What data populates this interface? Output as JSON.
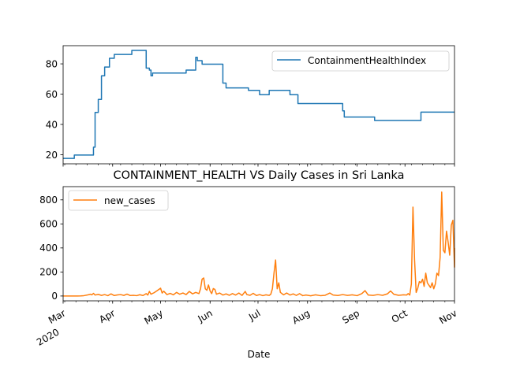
{
  "chart_data": [
    {
      "type": "line",
      "title": "",
      "xlabel": "",
      "ylabel": "",
      "xlim": [
        "2020-03-01",
        "2020-11-01"
      ],
      "ylim": [
        14,
        92
      ],
      "yticks": [
        20,
        40,
        60,
        80
      ],
      "legend": {
        "position": "top-right",
        "entries": [
          "ContainmentHealthIndex"
        ]
      },
      "series": [
        {
          "name": "ContainmentHealthIndex",
          "color": "#1f77b4",
          "step": true,
          "points": [
            [
              "2020-03-01",
              17.6
            ],
            [
              "2020-03-08",
              19.8
            ],
            [
              "2020-03-20",
              25
            ],
            [
              "2020-03-21",
              47.9
            ],
            [
              "2020-03-22",
              47.9
            ],
            [
              "2020-03-23",
              56.5
            ],
            [
              "2020-03-24",
              56.5
            ],
            [
              "2020-03-25",
              72.1
            ],
            [
              "2020-03-27",
              77.9
            ],
            [
              "2020-03-30",
              83.7
            ],
            [
              "2020-04-01",
              83.7
            ],
            [
              "2020-04-02",
              86.2
            ],
            [
              "2020-04-13",
              88.9
            ],
            [
              "2020-04-22",
              77.2
            ],
            [
              "2020-04-24",
              75.9
            ],
            [
              "2020-04-25",
              72.1
            ],
            [
              "2020-04-26",
              73.9
            ],
            [
              "2020-05-17",
              75.9
            ],
            [
              "2020-05-23",
              84.3
            ],
            [
              "2020-05-24",
              82.1
            ],
            [
              "2020-05-27",
              79.8
            ],
            [
              "2020-06-09",
              67.3
            ],
            [
              "2020-06-11",
              64.1
            ],
            [
              "2020-06-25",
              62.5
            ],
            [
              "2020-07-02",
              59.6
            ],
            [
              "2020-07-08",
              62.5
            ],
            [
              "2020-07-21",
              59.6
            ],
            [
              "2020-07-26",
              53.8
            ],
            [
              "2020-08-23",
              49.0
            ],
            [
              "2020-08-24",
              44.9
            ],
            [
              "2020-09-12",
              42.6
            ],
            [
              "2020-10-11",
              48.1
            ],
            [
              "2020-11-01",
              48.1
            ]
          ]
        }
      ]
    },
    {
      "type": "line",
      "title": "CONTAINMENT_HEALTH VS Daily Cases in Sri Lanka",
      "xlabel": "Date",
      "ylabel": "",
      "xlim": [
        "2020-03-01",
        "2020-11-01"
      ],
      "ylim": [
        -40,
        910
      ],
      "yticks": [
        0,
        200,
        400,
        600,
        800
      ],
      "xticks": [
        {
          "date": "2020-03-01",
          "label": "Mar",
          "sub": "2020"
        },
        {
          "date": "2020-04-01",
          "label": "Apr"
        },
        {
          "date": "2020-05-01",
          "label": "May"
        },
        {
          "date": "2020-06-01",
          "label": "Jun"
        },
        {
          "date": "2020-07-01",
          "label": "Jul"
        },
        {
          "date": "2020-08-01",
          "label": "Aug"
        },
        {
          "date": "2020-09-01",
          "label": "Sep"
        },
        {
          "date": "2020-10-01",
          "label": "Oct"
        },
        {
          "date": "2020-11-01",
          "label": "Nov"
        }
      ],
      "legend": {
        "position": "top-left",
        "entries": [
          "new_cases"
        ]
      },
      "series": [
        {
          "name": "new_cases",
          "color": "#ff7f0e",
          "points": [
            [
              "2020-03-01",
              0
            ],
            [
              "2020-03-10",
              0
            ],
            [
              "2020-03-12",
              1
            ],
            [
              "2020-03-14",
              3
            ],
            [
              "2020-03-16",
              8
            ],
            [
              "2020-03-18",
              15
            ],
            [
              "2020-03-19",
              10
            ],
            [
              "2020-03-20",
              22
            ],
            [
              "2020-03-21",
              8
            ],
            [
              "2020-03-23",
              14
            ],
            [
              "2020-03-25",
              5
            ],
            [
              "2020-03-27",
              12
            ],
            [
              "2020-03-29",
              3
            ],
            [
              "2020-03-31",
              18
            ],
            [
              "2020-04-02",
              4
            ],
            [
              "2020-04-04",
              9
            ],
            [
              "2020-04-06",
              12
            ],
            [
              "2020-04-08",
              5
            ],
            [
              "2020-04-10",
              16
            ],
            [
              "2020-04-12",
              4
            ],
            [
              "2020-04-14",
              6
            ],
            [
              "2020-04-16",
              3
            ],
            [
              "2020-04-18",
              11
            ],
            [
              "2020-04-20",
              4
            ],
            [
              "2020-04-22",
              20
            ],
            [
              "2020-04-23",
              8
            ],
            [
              "2020-04-24",
              38
            ],
            [
              "2020-04-25",
              15
            ],
            [
              "2020-04-27",
              28
            ],
            [
              "2020-04-29",
              46
            ],
            [
              "2020-05-01",
              65
            ],
            [
              "2020-05-02",
              25
            ],
            [
              "2020-05-03",
              40
            ],
            [
              "2020-05-05",
              12
            ],
            [
              "2020-05-07",
              22
            ],
            [
              "2020-05-09",
              10
            ],
            [
              "2020-05-11",
              30
            ],
            [
              "2020-05-13",
              15
            ],
            [
              "2020-05-15",
              25
            ],
            [
              "2020-05-17",
              12
            ],
            [
              "2020-05-19",
              38
            ],
            [
              "2020-05-21",
              18
            ],
            [
              "2020-05-23",
              30
            ],
            [
              "2020-05-25",
              20
            ],
            [
              "2020-05-26",
              60
            ],
            [
              "2020-05-27",
              140
            ],
            [
              "2020-05-28",
              150
            ],
            [
              "2020-05-29",
              60
            ],
            [
              "2020-05-30",
              48
            ],
            [
              "2020-05-31",
              92
            ],
            [
              "2020-06-01",
              42
            ],
            [
              "2020-06-02",
              20
            ],
            [
              "2020-06-03",
              62
            ],
            [
              "2020-06-04",
              55
            ],
            [
              "2020-06-05",
              15
            ],
            [
              "2020-06-07",
              25
            ],
            [
              "2020-06-09",
              8
            ],
            [
              "2020-06-11",
              18
            ],
            [
              "2020-06-13",
              6
            ],
            [
              "2020-06-15",
              20
            ],
            [
              "2020-06-17",
              8
            ],
            [
              "2020-06-19",
              25
            ],
            [
              "2020-06-21",
              5
            ],
            [
              "2020-06-23",
              38
            ],
            [
              "2020-06-24",
              12
            ],
            [
              "2020-06-26",
              6
            ],
            [
              "2020-06-28",
              22
            ],
            [
              "2020-06-30",
              4
            ],
            [
              "2020-07-02",
              12
            ],
            [
              "2020-07-04",
              3
            ],
            [
              "2020-07-06",
              10
            ],
            [
              "2020-07-08",
              5
            ],
            [
              "2020-07-09",
              15
            ],
            [
              "2020-07-10",
              60
            ],
            [
              "2020-07-11",
              190
            ],
            [
              "2020-07-12",
              300
            ],
            [
              "2020-07-13",
              60
            ],
            [
              "2020-07-14",
              110
            ],
            [
              "2020-07-15",
              30
            ],
            [
              "2020-07-17",
              10
            ],
            [
              "2020-07-19",
              25
            ],
            [
              "2020-07-21",
              8
            ],
            [
              "2020-07-23",
              18
            ],
            [
              "2020-07-25",
              5
            ],
            [
              "2020-07-27",
              20
            ],
            [
              "2020-07-29",
              3
            ],
            [
              "2020-07-31",
              8
            ],
            [
              "2020-08-03",
              2
            ],
            [
              "2020-08-06",
              10
            ],
            [
              "2020-08-09",
              3
            ],
            [
              "2020-08-12",
              6
            ],
            [
              "2020-08-15",
              25
            ],
            [
              "2020-08-17",
              8
            ],
            [
              "2020-08-20",
              4
            ],
            [
              "2020-08-23",
              12
            ],
            [
              "2020-08-26",
              5
            ],
            [
              "2020-08-29",
              10
            ],
            [
              "2020-09-01",
              3
            ],
            [
              "2020-09-04",
              20
            ],
            [
              "2020-09-06",
              45
            ],
            [
              "2020-09-08",
              8
            ],
            [
              "2020-09-11",
              5
            ],
            [
              "2020-09-14",
              12
            ],
            [
              "2020-09-17",
              6
            ],
            [
              "2020-09-20",
              18
            ],
            [
              "2020-09-22",
              42
            ],
            [
              "2020-09-24",
              15
            ],
            [
              "2020-09-27",
              6
            ],
            [
              "2020-09-30",
              10
            ],
            [
              "2020-10-02",
              8
            ],
            [
              "2020-10-03",
              20
            ],
            [
              "2020-10-04",
              8
            ],
            [
              "2020-10-05",
              100
            ],
            [
              "2020-10-06",
              740
            ],
            [
              "2020-10-07",
              300
            ],
            [
              "2020-10-08",
              30
            ],
            [
              "2020-10-09",
              65
            ],
            [
              "2020-10-10",
              120
            ],
            [
              "2020-10-11",
              110
            ],
            [
              "2020-10-12",
              140
            ],
            [
              "2020-10-13",
              80
            ],
            [
              "2020-10-14",
              190
            ],
            [
              "2020-10-15",
              110
            ],
            [
              "2020-10-16",
              90
            ],
            [
              "2020-10-17",
              70
            ],
            [
              "2020-10-18",
              110
            ],
            [
              "2020-10-19",
              60
            ],
            [
              "2020-10-20",
              100
            ],
            [
              "2020-10-21",
              190
            ],
            [
              "2020-10-22",
              170
            ],
            [
              "2020-10-23",
              320
            ],
            [
              "2020-10-24",
              865
            ],
            [
              "2020-10-25",
              380
            ],
            [
              "2020-10-26",
              360
            ],
            [
              "2020-10-27",
              540
            ],
            [
              "2020-10-28",
              450
            ],
            [
              "2020-10-29",
              340
            ],
            [
              "2020-10-30",
              590
            ],
            [
              "2020-10-31",
              630
            ],
            [
              "2020-11-01",
              240
            ],
            [
              "2020-11-01",
              400
            ]
          ]
        }
      ]
    }
  ]
}
